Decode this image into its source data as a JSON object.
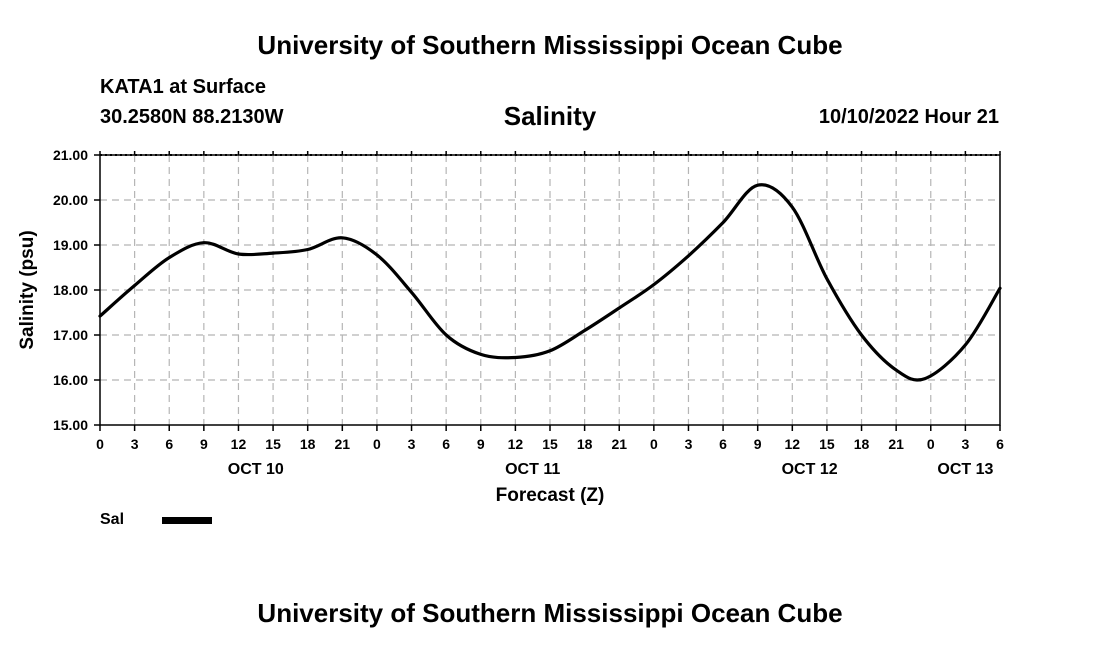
{
  "header": {
    "title": "University of Southern Mississippi Ocean Cube",
    "station": "KATA1 at Surface",
    "coordinates": "30.2580N  88.2130W",
    "run_time": "10/10/2022 Hour 21"
  },
  "footer": {
    "title": "University of Southern Mississippi Ocean Cube"
  },
  "chart_data": {
    "type": "line",
    "title": "Salinity",
    "xlabel": "Forecast (Z)",
    "ylabel": "Salinity (psu)",
    "ylim": [
      15.0,
      21.0
    ],
    "y_ticks": [
      "15.00",
      "16.00",
      "17.00",
      "18.00",
      "19.00",
      "20.00",
      "21.00"
    ],
    "x_range_hours": [
      0,
      78
    ],
    "x_ticks": [
      {
        "hour": 0,
        "label": "0"
      },
      {
        "hour": 3,
        "label": "3"
      },
      {
        "hour": 6,
        "label": "6"
      },
      {
        "hour": 9,
        "label": "9"
      },
      {
        "hour": 12,
        "label": "12"
      },
      {
        "hour": 15,
        "label": "15"
      },
      {
        "hour": 18,
        "label": "18"
      },
      {
        "hour": 21,
        "label": "21"
      },
      {
        "hour": 24,
        "label": "0"
      },
      {
        "hour": 27,
        "label": "3"
      },
      {
        "hour": 30,
        "label": "6"
      },
      {
        "hour": 33,
        "label": "9"
      },
      {
        "hour": 36,
        "label": "12"
      },
      {
        "hour": 39,
        "label": "15"
      },
      {
        "hour": 42,
        "label": "18"
      },
      {
        "hour": 45,
        "label": "21"
      },
      {
        "hour": 48,
        "label": "0"
      },
      {
        "hour": 51,
        "label": "3"
      },
      {
        "hour": 54,
        "label": "6"
      },
      {
        "hour": 57,
        "label": "9"
      },
      {
        "hour": 60,
        "label": "12"
      },
      {
        "hour": 63,
        "label": "15"
      },
      {
        "hour": 66,
        "label": "18"
      },
      {
        "hour": 69,
        "label": "21"
      },
      {
        "hour": 72,
        "label": "0"
      },
      {
        "hour": 75,
        "label": "3"
      },
      {
        "hour": 78,
        "label": "6"
      }
    ],
    "day_labels": [
      {
        "hour": 13.5,
        "label": "OCT 10"
      },
      {
        "hour": 37.5,
        "label": "OCT 11"
      },
      {
        "hour": 61.5,
        "label": "OCT 12"
      },
      {
        "hour": 75,
        "label": "OCT 13"
      }
    ],
    "series": [
      {
        "name": "Sal",
        "color": "#000000",
        "hours": [
          0,
          3,
          6,
          9,
          12,
          15,
          18,
          21,
          24,
          27,
          30,
          33,
          36,
          39,
          42,
          45,
          48,
          51,
          54,
          57,
          60,
          63,
          66,
          69,
          71.5,
          75,
          78
        ],
        "values": [
          17.42,
          18.1,
          18.72,
          19.05,
          18.8,
          18.82,
          18.9,
          19.16,
          18.78,
          17.95,
          17.0,
          16.57,
          16.5,
          16.65,
          17.1,
          17.6,
          18.12,
          18.76,
          19.5,
          20.33,
          19.84,
          18.25,
          17.0,
          16.22,
          16.03,
          16.78,
          18.04
        ]
      }
    ],
    "legend": {
      "label": "Sal",
      "placement": "bottom-left"
    }
  }
}
